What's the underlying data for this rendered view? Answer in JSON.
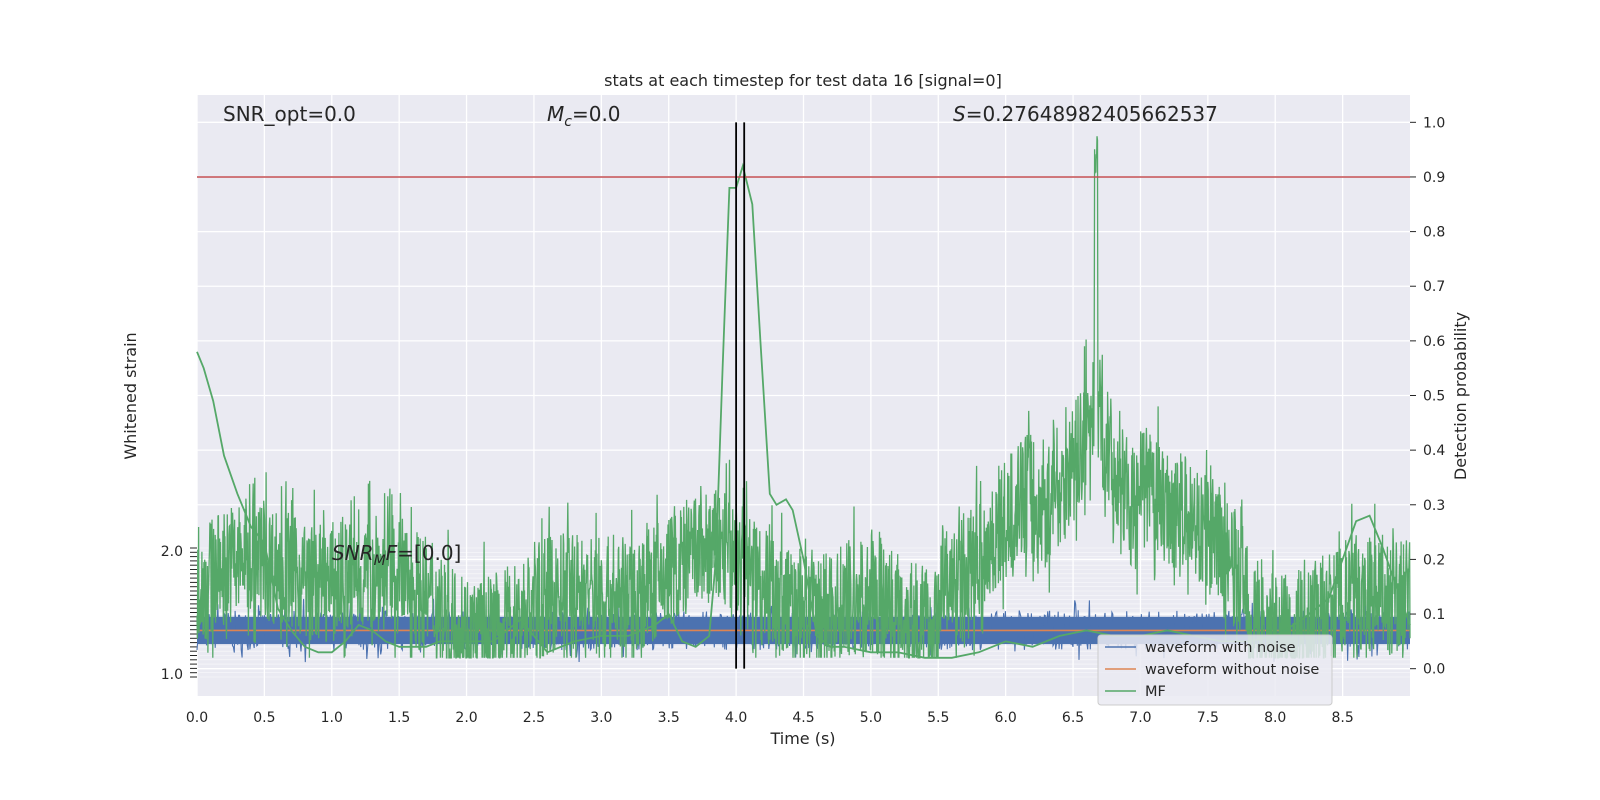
{
  "chart_data": {
    "type": "line",
    "title": "stats at each timestep for test data 16 [signal=0]",
    "xlabel": "Time (s)",
    "ylabel_left": "Whitened strain",
    "ylabel_right": "Detection probability",
    "xlim": [
      0.0,
      9.0
    ],
    "ylim_right": [
      -0.05,
      1.05
    ],
    "xticks": [
      "0.0",
      "0.5",
      "1.0",
      "1.5",
      "2.0",
      "2.5",
      "3.0",
      "3.5",
      "4.0",
      "4.5",
      "5.0",
      "5.5",
      "6.0",
      "6.5",
      "7.0",
      "7.5",
      "8.0",
      "8.5"
    ],
    "yticks_right": [
      "0.0",
      "0.1",
      "0.2",
      "0.3",
      "0.4",
      "0.5",
      "0.6",
      "0.7",
      "0.8",
      "0.9",
      "1.0"
    ],
    "yticks_left_visible": [
      "2.0",
      "1.0"
    ],
    "threshold": 0.9,
    "event_lines_x": [
      4.0,
      4.06
    ],
    "annotations": {
      "snr_opt": "SNR_opt=0.0",
      "mc": "=0.0",
      "mc_symbol": "M",
      "mc_sub": "c",
      "s": "=0.27648982405662537",
      "s_symbol": "S",
      "snr_mf_sym": "SNR",
      "snr_mf_sub": "M",
      "snr_mf_f": "F",
      "snr_mf": "=[0.0]"
    },
    "series": [
      {
        "name": "waveform with noise",
        "color": "#4c72b0",
        "center": 0.07,
        "spread": 0.045
      },
      {
        "name": "waveform without noise",
        "color": "#dd8452",
        "value": 0.07
      },
      {
        "name": "MF",
        "color": "#55a868",
        "smooth_x": [
          0.0,
          0.05,
          0.12,
          0.2,
          0.3,
          0.4,
          0.5,
          0.6,
          0.7,
          0.8,
          0.9,
          1.0,
          1.1,
          1.2,
          1.3,
          1.4,
          1.5,
          1.6,
          1.7,
          1.8,
          1.9,
          2.0,
          2.2,
          2.4,
          2.5,
          2.6,
          2.7,
          2.8,
          3.0,
          3.2,
          3.4,
          3.5,
          3.6,
          3.7,
          3.8,
          3.85,
          3.9,
          3.95,
          4.0,
          4.05,
          4.12,
          4.18,
          4.25,
          4.3,
          4.37,
          4.42,
          4.5,
          4.6,
          4.7,
          4.8,
          5.0,
          5.2,
          5.4,
          5.6,
          5.8,
          6.0,
          6.2,
          6.4,
          6.6,
          6.8,
          7.0,
          7.2,
          7.4,
          7.6,
          7.8,
          8.0,
          8.2,
          8.4,
          8.5,
          8.6,
          8.7,
          8.8,
          9.0
        ],
        "smooth_y": [
          0.58,
          0.55,
          0.49,
          0.39,
          0.32,
          0.26,
          0.23,
          0.11,
          0.07,
          0.04,
          0.03,
          0.03,
          0.05,
          0.08,
          0.07,
          0.05,
          0.04,
          0.04,
          0.04,
          0.05,
          0.05,
          0.05,
          0.05,
          0.09,
          0.06,
          0.03,
          0.04,
          0.05,
          0.06,
          0.06,
          0.08,
          0.1,
          0.05,
          0.04,
          0.06,
          0.2,
          0.55,
          0.88,
          0.88,
          0.92,
          0.85,
          0.6,
          0.32,
          0.3,
          0.31,
          0.29,
          0.2,
          0.06,
          0.04,
          0.04,
          0.03,
          0.03,
          0.02,
          0.02,
          0.03,
          0.05,
          0.04,
          0.06,
          0.07,
          0.06,
          0.06,
          0.07,
          0.06,
          0.05,
          0.05,
          0.06,
          0.09,
          0.13,
          0.2,
          0.27,
          0.28,
          0.22,
          0.08
        ],
        "noise_peak_x": 6.67,
        "noise_peak_y": 1.0
      }
    ],
    "legend": {
      "position": "bottom-right"
    }
  }
}
